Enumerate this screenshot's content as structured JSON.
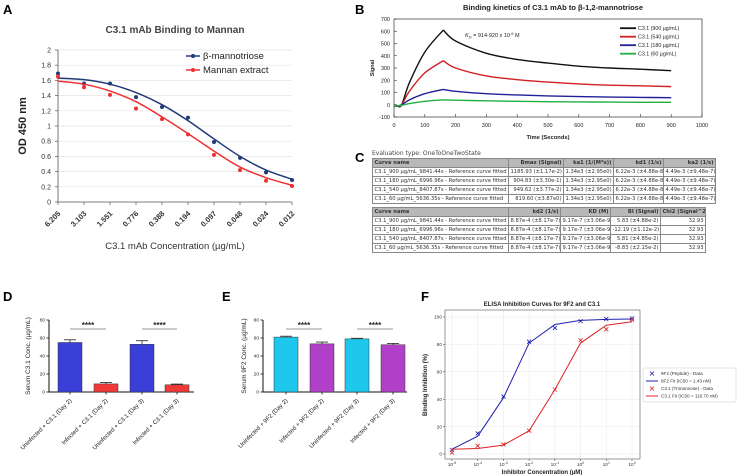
{
  "panel_labels": {
    "A": "A",
    "B": "B",
    "C": "C",
    "D": "D",
    "E": "E",
    "F": "F"
  },
  "colors": {
    "navy": "#1f3a78",
    "red": "#f03030",
    "black": "#111111",
    "b_red": "#d02020",
    "b_blue": "#20209a",
    "b_green": "#20b040",
    "d_blue": "#3a3fd8",
    "d_red": "#f03a3a",
    "e_cyan": "#1ec8ec",
    "e_purple": "#b040c8",
    "f_blue": "#2020b0",
    "f_red": "#e02020"
  },
  "chart_data": [
    {
      "id": "A",
      "type": "line",
      "title": "C3.1 mAb Binding to Mannan",
      "xlabel": "C3.1 mAb Concentration (µg/mL)",
      "ylabel": "OD 450 nm",
      "categories": [
        "6.205",
        "3.103",
        "1.551",
        "0.776",
        "0.388",
        "0.194",
        "0.097",
        "0.048",
        "0.024",
        "0.012"
      ],
      "yticks": [
        "0",
        "0.2",
        "0.4",
        "0.6",
        "0.8",
        "1",
        "1.2",
        "1.4",
        "1.6",
        "1.8",
        "2"
      ],
      "ylim": [
        0,
        2
      ],
      "grid": true,
      "legend_position": "top-right",
      "series": [
        {
          "name": "β-mannotriose",
          "color": "#1f3a78",
          "values": [
            1.69,
            1.56,
            1.56,
            1.38,
            1.25,
            1.11,
            0.79,
            0.58,
            0.39,
            0.29
          ],
          "fit": [
            1.63,
            1.61,
            1.55,
            1.44,
            1.28,
            1.07,
            0.83,
            0.6,
            0.42,
            0.3
          ]
        },
        {
          "name": "Mannan extract",
          "color": "#f03030",
          "values": [
            1.65,
            1.51,
            1.41,
            1.23,
            1.09,
            0.89,
            0.62,
            0.42,
            0.28,
            0.21
          ],
          "fit": [
            1.59,
            1.55,
            1.46,
            1.32,
            1.12,
            0.9,
            0.67,
            0.46,
            0.32,
            0.22
          ]
        }
      ]
    },
    {
      "id": "B",
      "type": "line",
      "title": "Binding kinetics of C3.1 mAb to β-1,2-mannotriose",
      "xlabel": "Time (Seconds)",
      "ylabel": "Signal",
      "xlim": [
        0,
        1000
      ],
      "ylim": [
        -100,
        700
      ],
      "xticks": [
        "0",
        "100",
        "200",
        "300",
        "400",
        "500",
        "600",
        "700",
        "800",
        "900",
        "1000"
      ],
      "yticks": [
        "-100",
        "0",
        "100",
        "200",
        "300",
        "400",
        "500",
        "600",
        "700"
      ],
      "annotation": {
        "k": "K",
        "sub": "D",
        "rest": " = 914-920 x 10",
        "exp": "-9",
        "unit": " M"
      },
      "legend_position": "top-right",
      "x": [
        10,
        25,
        50,
        100,
        160,
        200,
        300,
        400,
        500,
        600,
        700,
        800,
        900
      ],
      "series": [
        {
          "name": "C3.1 (900 µg/mL)",
          "color": "#111111",
          "values": [
            -10,
            0,
            180,
            430,
            610,
            520,
            420,
            370,
            340,
            315,
            300,
            290,
            278
          ]
        },
        {
          "name": "C3.1 (540 µg/mL)",
          "color": "#d02020",
          "values": [
            -10,
            0,
            110,
            260,
            360,
            300,
            235,
            205,
            185,
            170,
            160,
            155,
            148
          ]
        },
        {
          "name": "C3.1 (180 µg/mL)",
          "color": "#20209a",
          "values": [
            -10,
            0,
            40,
            90,
            125,
            110,
            90,
            80,
            72,
            67,
            63,
            60,
            58
          ]
        },
        {
          "name": "C3.1 (60 µg/mL)",
          "color": "#20b040",
          "values": [
            -10,
            -5,
            10,
            28,
            40,
            37,
            32,
            28,
            25,
            23,
            22,
            20,
            20
          ]
        }
      ]
    },
    {
      "id": "C",
      "type": "table",
      "evaluation_type": "Evaluation type: OneToOneTwoState",
      "table1": {
        "headers": [
          "Curve name",
          "Bmax (Signal)",
          "ka1 (1/(M*s))",
          "kd1 (1/s)",
          "ka2 (1/s)"
        ],
        "rows": [
          [
            "C3.1_900 µg/mL_9841.44s - Reference curve fitted",
            "1185.93 (±1.17e-2)",
            "1.34e3 (±2.95e0)",
            "6.22e-3 (±4.88e-8)",
            "4.49e-3 (±9.48e-7)"
          ],
          [
            "C3.1_180 µg/mL_6996.96s - Reference curve fitted",
            "904.83 (±3.30e-1)",
            "1.34e3 (±2.95e0)",
            "6.22e-3 (±4.88e-8)",
            "4.49e-3 (±9.48e-7)"
          ],
          [
            "C3.1_540 µg/mL_8407.87s - Reference curve fitted",
            "949.62 (±3.77e-2)",
            "1.34e3 (±2.95e0)",
            "6.22e-3 (±4.88e-8)",
            "4.49e-3 (±9.48e-7)"
          ],
          [
            "C3.1_60 µg/mL_5636.35s - Reference curve fitted",
            "819.60 (±3.87e0)",
            "1.34e3 (±2.95e0)",
            "6.22e-3 (±4.88e-8)",
            "4.49e-3 (±9.48e-7)"
          ]
        ]
      },
      "table2": {
        "headers": [
          "Curve name",
          "kd2 (1/s)",
          "KD (M)",
          "BI (Signal)",
          "Chi2 (Signal^2)"
        ],
        "rows": [
          [
            "C3.1_900 µg/mL_9841.44s - Reference curve fitted",
            "8.87e-4 (±8.17e-7)",
            "9.17e-7 (±3.06e-9)",
            "5.83 (±4.88e-2)",
            "32.93"
          ],
          [
            "C3.1_180 µg/mL_6996.96s - Reference curve fitted",
            "8.87e-4 (±8.17e-7)",
            "9.17e-7 (±3.06e-9)",
            "-12.19 (±1.12e-2)",
            "32.93"
          ],
          [
            "C3.1_540 µg/mL_8407.87s - Reference curve fitted",
            "8.87e-4 (±8.17e-7)",
            "9.17e-7 (±3.06e-9)",
            "5.81 (±4.85e-2)",
            "32.93"
          ],
          [
            "C3.1_60 µg/mL_5636.35s - Reference curve fitted",
            "8.87e-4 (±8.17e-7)",
            "9.17e-7 (±3.06e-9)",
            "-8.83 (±2.15e-2)",
            "32.93"
          ]
        ]
      }
    },
    {
      "id": "D",
      "type": "bar",
      "ylabel": "Serum C3.1 Conc. (µg/mL)",
      "ylim": [
        0,
        80
      ],
      "yticks": [
        "0",
        "20",
        "40",
        "60",
        "80"
      ],
      "categories": [
        "Uninfected  + C3.1 (Day 2)",
        "Infected + C3.1 (Day 2)",
        "Uninfected  + C3.1 (Day 3)",
        "Infected + C3.1 (Day 3)"
      ],
      "values": [
        55,
        9,
        53,
        8
      ],
      "errors": [
        3,
        1.5,
        4,
        0.8
      ],
      "bar_colors": [
        "#3a3fd8",
        "#f03a3a",
        "#3a3fd8",
        "#f03a3a"
      ],
      "significance": [
        {
          "pair": [
            0,
            1
          ],
          "label": "****"
        },
        {
          "pair": [
            2,
            3
          ],
          "label": "****"
        }
      ]
    },
    {
      "id": "E",
      "type": "bar",
      "ylabel": "Serum 9F2 Conc. (µg/mL)",
      "ylim": [
        0,
        80
      ],
      "yticks": [
        "0",
        "20",
        "40",
        "60",
        "80"
      ],
      "categories": [
        "Uninfected  + 9F2 (Day 2)",
        "Infected + 9F2 (Day 2)",
        "Uninfected  + 9F2 (Day 3)",
        "Infected + 9F2 (Day 3)"
      ],
      "values": [
        61,
        53.5,
        59,
        52.5
      ],
      "errors": [
        1,
        2,
        0.7,
        1.5
      ],
      "bar_colors": [
        "#1ec8ec",
        "#b040c8",
        "#1ec8ec",
        "#b040c8"
      ],
      "significance": [
        {
          "pair": [
            0,
            1
          ],
          "label": "****"
        },
        {
          "pair": [
            2,
            3
          ],
          "label": "****"
        }
      ]
    },
    {
      "id": "F",
      "type": "line",
      "title": "ELISA Inhibition Curves for 9F2 and C3.1",
      "xlabel": "Inhibitor Concentration (µM)",
      "ylabel": "Binding Inhibition (%)",
      "xscale": "log",
      "x": [
        1e-05,
        0.0001,
        0.001,
        0.01,
        0.1,
        1,
        10,
        100
      ],
      "xticks_exp": [
        "-5",
        "-4",
        "-3",
        "-2",
        "-1",
        "0",
        "1",
        "2"
      ],
      "xticks_base": "10",
      "ylim": [
        0,
        100
      ],
      "yticks": [
        "0",
        "20",
        "40",
        "60",
        "80",
        "100"
      ],
      "grid": true,
      "legend_position": "right-outside",
      "series": [
        {
          "name": "9F2 (Peptide) - Data",
          "kind": "markers",
          "color": "#2020b0",
          "values": [
            3,
            15,
            42,
            82,
            92,
            97,
            98.5,
            99
          ]
        },
        {
          "name": "9F2 Fit (IC50 = 1.43 nM)",
          "kind": "line",
          "color": "#2020b0",
          "values": [
            3.5,
            13,
            41,
            81,
            94.5,
            97.5,
            98.3,
            98.5
          ]
        },
        {
          "name": "C3.1 (Trimannose) - Data",
          "kind": "markers",
          "color": "#e02020",
          "values": [
            1,
            6,
            7,
            17,
            47,
            83,
            91,
            98
          ]
        },
        {
          "name": "C3.1 Fit (IC50 = 116.70 nM)",
          "kind": "line",
          "color": "#e02020",
          "values": [
            3.5,
            4,
            6.5,
            17,
            47,
            81,
            94,
            96.5
          ]
        }
      ]
    }
  ]
}
